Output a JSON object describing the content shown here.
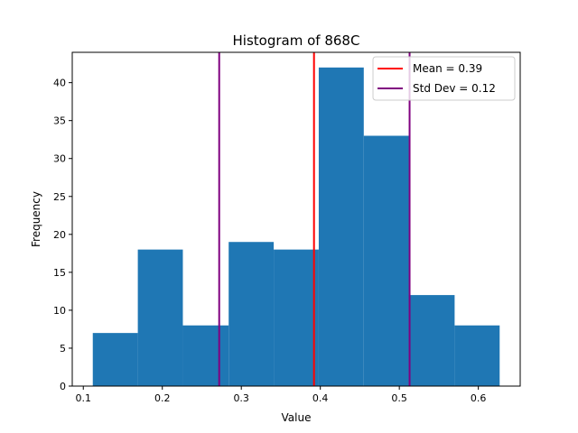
{
  "chart_data": {
    "type": "bar",
    "title": "Histogram of 868C",
    "xlabel": "Value",
    "ylabel": "Frequency",
    "xlim": [
      0.086,
      0.653
    ],
    "ylim": [
      0,
      44
    ],
    "xticks": [
      0.1,
      0.2,
      0.3,
      0.4,
      0.5,
      0.6
    ],
    "xtick_labels": [
      "0.1",
      "0.2",
      "0.3",
      "0.4",
      "0.5",
      "0.6"
    ],
    "yticks": [
      0,
      5,
      10,
      15,
      20,
      25,
      30,
      35,
      40
    ],
    "ytick_labels": [
      "0",
      "5",
      "10",
      "15",
      "20",
      "25",
      "30",
      "35",
      "40"
    ],
    "bins": [
      {
        "x0": 0.112,
        "x1": 0.169,
        "count": 7
      },
      {
        "x0": 0.169,
        "x1": 0.226,
        "count": 18
      },
      {
        "x0": 0.226,
        "x1": 0.284,
        "count": 8
      },
      {
        "x0": 0.284,
        "x1": 0.341,
        "count": 19
      },
      {
        "x0": 0.341,
        "x1": 0.398,
        "count": 18
      },
      {
        "x0": 0.398,
        "x1": 0.455,
        "count": 42
      },
      {
        "x0": 0.455,
        "x1": 0.512,
        "count": 33
      },
      {
        "x0": 0.512,
        "x1": 0.57,
        "count": 12
      },
      {
        "x0": 0.57,
        "x1": 0.627,
        "count": 8
      }
    ],
    "bar_color": "#1f77b4",
    "vlines": [
      {
        "x": 0.392,
        "color": "#ff0000",
        "legend": "Mean = 0.39"
      },
      {
        "x": 0.272,
        "color": "#800080",
        "legend": null
      },
      {
        "x": 0.513,
        "color": "#800080",
        "legend": "Std Dev = 0.12"
      }
    ],
    "legend": {
      "placement": "top-right",
      "entries": [
        {
          "label": "Mean = 0.39",
          "color": "#ff0000"
        },
        {
          "label": "Std Dev = 0.12",
          "color": "#800080"
        }
      ]
    },
    "grid": false
  }
}
